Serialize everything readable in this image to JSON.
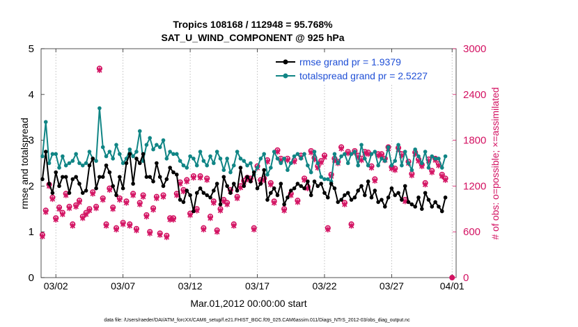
{
  "chart_data": {
    "type": "line",
    "title_line1": "Tropics 108168 / 112948 = 95.768%",
    "title_line2": "SAT_U_WIND_COMPONENT @ 925 hPa",
    "xlabel": "Mar.01,2012 00:00:00 start",
    "ylabel_left": "rmse and totalspread",
    "ylabel_right": "# of obs: o=possible; ×=assimilated",
    "footer": "data file: /Users/raeder/DAI/ATM_forcXX/CAM6_setup/f.e21.FHIST_BGC.f09_025.CAM6assim.011/Diags_NTrS_2012-03/obs_diag_output.nc",
    "x_range": [
      0.4,
      31.3
    ],
    "x_ticks": [
      {
        "value": 1.5,
        "label": "03/02"
      },
      {
        "value": 6.5,
        "label": "03/07"
      },
      {
        "value": 11.5,
        "label": "03/12"
      },
      {
        "value": 16.5,
        "label": "03/17"
      },
      {
        "value": 21.5,
        "label": "03/22"
      },
      {
        "value": 26.5,
        "label": "03/27"
      },
      {
        "value": 31.0,
        "label": "04/01"
      }
    ],
    "y_left": {
      "range": [
        0,
        5
      ],
      "ticks": [
        "0",
        "1",
        "2",
        "3",
        "4",
        "5"
      ]
    },
    "y_right": {
      "range": [
        0,
        3000
      ],
      "ticks": [
        "0",
        "600",
        "1200",
        "1800",
        "2400",
        "3000"
      ]
    },
    "colors": {
      "rmse": "#000000",
      "spread": "#108585",
      "obs": "#d31262"
    },
    "legend": {
      "position": "top-right",
      "entries": [
        "rmse grand pr = 1.9379",
        "totalspread grand pr = 2.5227"
      ]
    },
    "series": [
      {
        "name": "rmse",
        "x_start": 0.5,
        "x_step": 0.25,
        "values": [
          2.15,
          2.75,
          2.05,
          1.85,
          2.3,
          2.0,
          2.2,
          2.2,
          1.85,
          2.15,
          2.2,
          2.05,
          1.85,
          1.9,
          2.45,
          2.6,
          1.95,
          2.2,
          2.2,
          2.45,
          2.3,
          2.0,
          1.8,
          2.2,
          1.95,
          2.5,
          2.7,
          2.05,
          2.6,
          2.5,
          2.7,
          2.2,
          2.2,
          2.1,
          2.5,
          2.2,
          2.0,
          2.15,
          2.4,
          2.3,
          2.25,
          1.7,
          1.65,
          1.9,
          1.8,
          1.45,
          1.85,
          1.95,
          1.85,
          1.8,
          1.75,
          1.9,
          2.05,
          1.6,
          2.2,
          2.0,
          1.85,
          2.05,
          1.9,
          2.4,
          2.0,
          2.2,
          2.1,
          2.3,
          1.95,
          2.05,
          2.35,
          1.7,
          1.85,
          1.95,
          1.8,
          2.05,
          1.6,
          1.75,
          1.9,
          1.95,
          2.05,
          2.0,
          1.95,
          2.1,
          1.8,
          2.1,
          2.0,
          2.05,
          1.85,
          1.75,
          2.05,
          1.95,
          1.65,
          1.7,
          1.8,
          1.85,
          1.7,
          1.75,
          1.9,
          2.0,
          1.8,
          2.1,
          1.75,
          1.9,
          1.65,
          1.7,
          1.55,
          1.75,
          1.95,
          1.8,
          1.85,
          1.7,
          2.0,
          1.65,
          1.6,
          1.55,
          1.75,
          1.5,
          1.85,
          1.7,
          1.55,
          1.65,
          1.55,
          1.45,
          1.75
        ]
      },
      {
        "name": "totalspread",
        "x_start": 0.5,
        "x_step": 0.25,
        "values": [
          2.65,
          3.4,
          2.5,
          2.7,
          2.7,
          2.4,
          2.65,
          2.45,
          2.5,
          2.55,
          2.7,
          2.5,
          2.45,
          2.5,
          2.75,
          2.6,
          2.55,
          3.7,
          2.85,
          2.65,
          2.75,
          2.6,
          2.9,
          2.7,
          2.5,
          2.6,
          2.8,
          2.65,
          2.75,
          3.2,
          2.55,
          2.9,
          3.05,
          2.8,
          2.9,
          2.85,
          3.0,
          2.6,
          2.75,
          2.7,
          2.7,
          2.55,
          2.45,
          2.4,
          2.65,
          2.6,
          2.45,
          2.75,
          2.55,
          2.45,
          2.65,
          2.5,
          2.75,
          2.6,
          2.35,
          2.6,
          2.3,
          2.45,
          2.75,
          2.6,
          2.55,
          2.45,
          2.5,
          2.25,
          2.4,
          2.6,
          2.7,
          2.25,
          2.4,
          2.75,
          2.6,
          2.5,
          2.6,
          2.35,
          2.5,
          2.65,
          2.7,
          2.6,
          2.7,
          2.45,
          2.3,
          2.75,
          2.5,
          2.2,
          2.15,
          2.15,
          2.1,
          2.7,
          2.5,
          2.65,
          2.7,
          2.5,
          2.7,
          2.75,
          2.45,
          2.9,
          2.6,
          2.45,
          2.7,
          2.75,
          2.45,
          2.6,
          2.55,
          2.85,
          2.45,
          2.55,
          2.9,
          2.45,
          2.75,
          2.5,
          2.35,
          2.8,
          2.65,
          2.5,
          2.75,
          2.4,
          2.65,
          2.6,
          2.6,
          2.4,
          2.65
        ]
      },
      {
        "name": "obs possible",
        "x_start": 0.5,
        "x_step": 0.25,
        "values": [
          560,
          880,
          1220,
          1050,
          780,
          920,
          850,
          1100,
          930,
          700,
          950,
          1010,
          800,
          850,
          900,
          1120,
          930,
          2740,
          1040,
          700,
          1170,
          920,
          650,
          1040,
          720,
          1000,
          700,
          1100,
          640,
          980,
          1080,
          820,
          600,
          910,
          1060,
          580,
          1080,
          550,
          780,
          780,
          1100,
          1250,
          1150,
          1280,
          840,
          1330,
          900,
          1330,
          650,
          1300,
          800,
          1000,
          620,
          900,
          1020,
          980,
          1150,
          700,
          1060,
          1200,
          1270,
          1310,
          1300,
          650,
          1460,
          1280,
          1300,
          1540,
          1240,
          1000,
          1670,
          1560,
          900,
          1560,
          1100,
          1540,
          1010,
          1600,
          1300,
          1190,
          1660,
          1570,
          1460,
          1530,
          1600,
          650,
          1350,
          1560,
          1520,
          1710,
          980,
          1650,
          700,
          1660,
          1600,
          1560,
          1650,
          1640,
          1460,
          1290,
          1620,
          1620,
          1560,
          1710,
          1450,
          1430,
          1700,
          1620,
          1020,
          1520,
          1360,
          1640,
          1550,
          1480,
          1240,
          1550,
          1400,
          1560,
          1490,
          1350,
          1300
        ]
      },
      {
        "name": "obs assimilated",
        "x_start": 0.5,
        "x_step": 0.25,
        "values": [
          540,
          860,
          1200,
          1030,
          760,
          900,
          830,
          1080,
          910,
          680,
          930,
          990,
          780,
          830,
          880,
          1100,
          910,
          2720,
          1020,
          680,
          1150,
          900,
          630,
          1020,
          700,
          980,
          680,
          1080,
          620,
          960,
          1060,
          800,
          580,
          890,
          1040,
          560,
          1060,
          530,
          760,
          760,
          1080,
          1230,
          1130,
          1260,
          820,
          1310,
          880,
          1310,
          630,
          1280,
          780,
          980,
          600,
          880,
          1000,
          960,
          1130,
          680,
          1040,
          1180,
          1250,
          1290,
          1280,
          630,
          1440,
          1260,
          1280,
          1520,
          1220,
          980,
          1650,
          1540,
          880,
          1540,
          1080,
          1520,
          990,
          1580,
          1280,
          1170,
          1640,
          1550,
          1440,
          1510,
          1580,
          630,
          1330,
          1540,
          1500,
          1690,
          960,
          1630,
          680,
          1640,
          1580,
          1540,
          1630,
          1620,
          1440,
          1270,
          1600,
          1600,
          1540,
          1690,
          1430,
          1410,
          1680,
          1600,
          1000,
          1500,
          1340,
          1620,
          1530,
          1460,
          1220,
          1530,
          1380,
          1540,
          1470,
          1330,
          1280
        ]
      }
    ]
  }
}
